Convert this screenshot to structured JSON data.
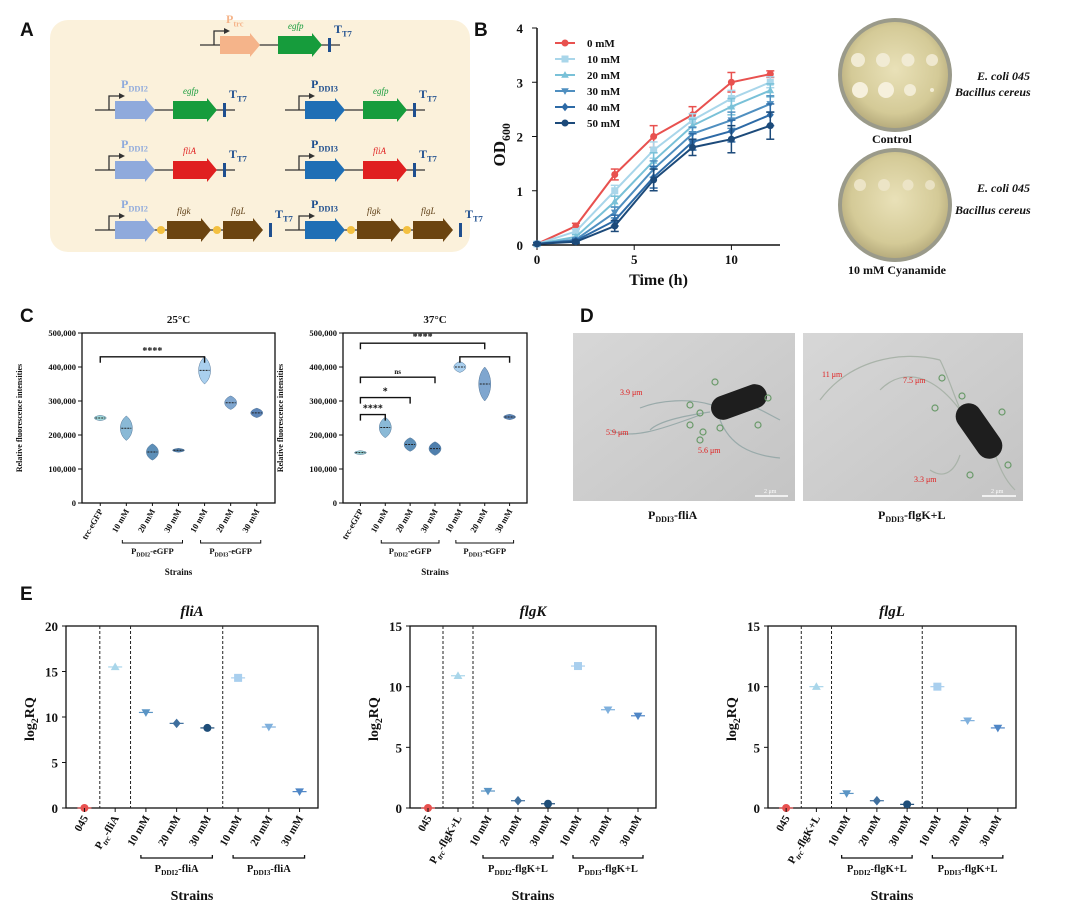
{
  "panels": {
    "A": {
      "label": "A",
      "constructs": [
        {
          "promoter": "P",
          "promoter_sub": "trc",
          "gene": "egfp",
          "terminator": "T",
          "terminator_sub": "T7"
        },
        {
          "promoter": "P",
          "promoter_sub": "DDI2",
          "gene": "egfp",
          "terminator": "T",
          "terminator_sub": "T7"
        },
        {
          "promoter": "P",
          "promoter_sub": "DDI3",
          "gene": "egfp",
          "terminator": "T",
          "terminator_sub": "T7"
        },
        {
          "promoter": "P",
          "promoter_sub": "DDI2",
          "gene": "fliA",
          "terminator": "T",
          "terminator_sub": "T7"
        },
        {
          "promoter": "P",
          "promoter_sub": "DDI3",
          "gene": "fliA",
          "terminator": "T",
          "terminator_sub": "T7"
        },
        {
          "promoter": "P",
          "promoter_sub": "DDI2",
          "gene": "flgk",
          "gene2": "flgL",
          "terminator": "T",
          "terminator_sub": "T7"
        },
        {
          "promoter": "P",
          "promoter_sub": "DDI3",
          "gene": "flgk",
          "gene2": "flgL",
          "terminator": "T",
          "terminator_sub": "T7"
        }
      ],
      "colors": {
        "trc": "#f5b48a",
        "ddi2": "#8faadc",
        "ddi3": "#1f6fb5",
        "egfp": "#169c3c",
        "flia": "#e02020",
        "flg": "#6b4410",
        "rbs": "#f3c040",
        "bg": "#fbf1db"
      }
    },
    "B": {
      "label": "B",
      "plate_labels": {
        "ecoli": "E. coli 045",
        "bacillus": "Bacillus cereus",
        "control": "Control",
        "cyanamide": "10 mM Cyanamide"
      }
    },
    "C": {
      "label": "C"
    },
    "D": {
      "label": "D",
      "image_left": {
        "caption_main": "P",
        "caption_sub": "DDI3",
        "caption_tail": "-fliA",
        "measures": [
          "3.9 μm",
          "5.9 μm",
          "5.6 μm"
        ],
        "scale": "2 μm"
      },
      "image_right": {
        "caption_main": "P",
        "caption_sub": "DDI3",
        "caption_tail": "-flgK+L",
        "measures": [
          "11 μm",
          "7.5 μm",
          "3.3 μm"
        ],
        "scale": "2 μm"
      }
    },
    "E": {
      "label": "E"
    }
  },
  "chart_data": [
    {
      "id": "B_growth",
      "type": "line",
      "xlabel": "Time (h)",
      "ylabel": "OD",
      "ylabel_sub": "600",
      "xlim": [
        0,
        12.5
      ],
      "ylim": [
        0,
        4
      ],
      "xticks": [
        0,
        5,
        10
      ],
      "yticks": [
        0,
        1,
        2,
        3,
        4
      ],
      "x": [
        0,
        2,
        4,
        6,
        8,
        10,
        12
      ],
      "series": [
        {
          "name": "0 mM",
          "color": "#e8514f",
          "marker": "circle",
          "values": [
            0.02,
            0.35,
            1.3,
            2.0,
            2.4,
            3.0,
            3.15
          ],
          "errors": [
            0.02,
            0.05,
            0.1,
            0.2,
            0.15,
            0.18,
            0.06
          ]
        },
        {
          "name": "10 mM",
          "color": "#a9d6ea",
          "marker": "square",
          "values": [
            0.02,
            0.25,
            1.0,
            1.75,
            2.3,
            2.7,
            3.0
          ],
          "errors": [
            0.02,
            0.04,
            0.1,
            0.15,
            0.12,
            0.15,
            0.1
          ]
        },
        {
          "name": "20 mM",
          "color": "#79c1d8",
          "marker": "triangle",
          "values": [
            0.02,
            0.15,
            0.8,
            1.55,
            2.2,
            2.55,
            2.85
          ],
          "errors": [
            0.02,
            0.04,
            0.1,
            0.15,
            0.12,
            0.15,
            0.12
          ]
        },
        {
          "name": "30 mM",
          "color": "#4f8fc0",
          "marker": "triangle-down",
          "values": [
            0.02,
            0.1,
            0.6,
            1.4,
            2.05,
            2.3,
            2.6
          ],
          "errors": [
            0.02,
            0.03,
            0.1,
            0.15,
            0.12,
            0.15,
            0.15
          ]
        },
        {
          "name": "40 mM",
          "color": "#2d6aa6",
          "marker": "diamond",
          "values": [
            0.02,
            0.08,
            0.45,
            1.25,
            1.9,
            2.1,
            2.4
          ],
          "errors": [
            0.02,
            0.03,
            0.1,
            0.2,
            0.15,
            0.2,
            0.2
          ]
        },
        {
          "name": "50 mM",
          "color": "#1c4a7a",
          "marker": "circle",
          "values": [
            0.02,
            0.06,
            0.35,
            1.2,
            1.8,
            1.95,
            2.2
          ],
          "errors": [
            0.02,
            0.03,
            0.1,
            0.2,
            0.15,
            0.25,
            0.25
          ]
        }
      ]
    },
    {
      "id": "C_25",
      "type": "violin",
      "title": "25°C",
      "ylabel": "Relative fluorescence intensities",
      "xlabel": "Strains",
      "ylim": [
        0,
        500000
      ],
      "yticks": [
        "0",
        "100,000",
        "200,000",
        "300,000",
        "400,000",
        "500,000"
      ],
      "categories": [
        "trc-eGFP",
        "10 mM",
        "20 mM",
        "30 mM",
        "10 mM",
        "20 mM",
        "30 mM"
      ],
      "groups": [
        {
          "label_main": "P",
          "label_sub": "DDI2",
          "label_tail": "-eGFP",
          "from": 1,
          "to": 3
        },
        {
          "label_main": "P",
          "label_sub": "DDI3",
          "label_tail": "-eGFP",
          "from": 4,
          "to": 6
        }
      ],
      "values": [
        250000,
        220000,
        150000,
        155000,
        390000,
        295000,
        265000
      ],
      "spreads": [
        4000,
        18000,
        12000,
        2000,
        20000,
        10000,
        7000
      ],
      "colors": [
        "#9fd8da",
        "#8ab9d6",
        "#5d8fb8",
        "#4f7fad",
        "#a9cfee",
        "#7fa6cf",
        "#5c84b7"
      ],
      "significance": [
        {
          "from": 0,
          "to": 4,
          "label": "****",
          "level": 430000
        }
      ]
    },
    {
      "id": "C_37",
      "type": "violin",
      "title": "37°C",
      "ylabel": "Relative fluorescence intensities",
      "xlabel": "Strains",
      "ylim": [
        0,
        500000
      ],
      "yticks": [
        "0",
        "100,000",
        "200,000",
        "300,000",
        "400,000",
        "500,000"
      ],
      "categories": [
        "trc-eGFP",
        "10 mM",
        "20 mM",
        "30 mM",
        "10 mM",
        "20 mM",
        "30 mM"
      ],
      "groups": [
        {
          "label_main": "P",
          "label_sub": "DDI2",
          "label_tail": "-eGFP",
          "from": 1,
          "to": 3
        },
        {
          "label_main": "P",
          "label_sub": "DDI3",
          "label_tail": "-eGFP",
          "from": 4,
          "to": 6
        }
      ],
      "values": [
        148000,
        222000,
        172000,
        160000,
        400000,
        350000,
        253000
      ],
      "spreads": [
        2000,
        15000,
        10000,
        10000,
        8000,
        25000,
        4000
      ],
      "colors": [
        "#9fd8da",
        "#8ab9d6",
        "#5d8fb8",
        "#4f7fad",
        "#a9cfee",
        "#7fa6cf",
        "#5c84b7"
      ],
      "significance": [
        {
          "from": 0,
          "to": 1,
          "label": "****",
          "level": 260000
        },
        {
          "from": 0,
          "to": 2,
          "label": "*",
          "level": 310000
        },
        {
          "from": 0,
          "to": 3,
          "label": "ns",
          "level": 370000
        },
        {
          "from": 0,
          "to": 5,
          "label": "****",
          "level": 470000
        },
        {
          "from": 4,
          "to": 6,
          "label": "",
          "level": 430000
        }
      ]
    },
    {
      "id": "E_fliA",
      "type": "scatter",
      "title": "fliA",
      "ylabel": "log",
      "ylabel_sub": "2",
      "ylabel_tail": "RQ",
      "xlabel": "Strains",
      "ylim": [
        0,
        20
      ],
      "yticks": [
        0,
        5,
        10,
        15,
        20
      ],
      "categories": [
        "045",
        "trc-fliA",
        "10 mM",
        "20 mM",
        "30 mM",
        "10 mM",
        "20 mM",
        "30 mM"
      ],
      "cat_prefix": [
        "",
        "P",
        "",
        "",
        "",
        "",
        "",
        ""
      ],
      "cat_sub": [
        "",
        "trc",
        "",
        "",
        "",
        "",
        "",
        ""
      ],
      "cat_tail": [
        "045",
        "-fliA",
        "10 mM",
        "20 mM",
        "30 mM",
        "10 mM",
        "20 mM",
        "30 mM"
      ],
      "values": [
        0,
        15.5,
        10.5,
        9.3,
        8.8,
        14.3,
        8.9,
        1.8
      ],
      "markers": [
        "circle",
        "triangle",
        "triangle-down",
        "diamond",
        "circle",
        "square",
        "triangle-down",
        "triangle-down"
      ],
      "colors": [
        "#e8514f",
        "#a9d6ea",
        "#5b95c5",
        "#3f6f9e",
        "#1f4e79",
        "#a9cfee",
        "#7fb0dd",
        "#4f86c6"
      ],
      "dividers": [
        0.5,
        1.5,
        4.5
      ],
      "groups": [
        {
          "label_main": "P",
          "label_sub": "DDI2",
          "label_tail": "-fliA",
          "from": 2,
          "to": 4
        },
        {
          "label_main": "P",
          "label_sub": "DDI3",
          "label_tail": "-fliA",
          "from": 5,
          "to": 7
        }
      ]
    },
    {
      "id": "E_flgK",
      "type": "scatter",
      "title": "flgK",
      "ylabel": "log",
      "ylabel_sub": "2",
      "ylabel_tail": "RQ",
      "xlabel": "Strains",
      "ylim": [
        0,
        15
      ],
      "yticks": [
        0,
        5,
        10,
        15
      ],
      "categories": [
        "045",
        "trc-flgK+L",
        "10 mM",
        "20 mM",
        "30 mM",
        "10 mM",
        "20 mM",
        "30 mM"
      ],
      "cat_prefix": [
        "",
        "P",
        "",
        "",
        "",
        "",
        "",
        ""
      ],
      "cat_sub": [
        "",
        "trc",
        "",
        "",
        "",
        "",
        "",
        ""
      ],
      "cat_tail": [
        "045",
        "-flgK+L",
        "10 mM",
        "20 mM",
        "30 mM",
        "10 mM",
        "20 mM",
        "30 mM"
      ],
      "values": [
        0,
        10.9,
        1.4,
        0.6,
        0.35,
        11.7,
        8.1,
        7.6
      ],
      "markers": [
        "circle",
        "triangle",
        "triangle-down",
        "diamond",
        "circle",
        "square",
        "triangle-down",
        "triangle-down"
      ],
      "colors": [
        "#e8514f",
        "#a9d6ea",
        "#5b95c5",
        "#3f6f9e",
        "#1f4e79",
        "#a9cfee",
        "#7fb0dd",
        "#4f86c6"
      ],
      "dividers": [
        0.5,
        1.5
      ],
      "groups": [
        {
          "label_main": "P",
          "label_sub": "DDI2",
          "label_tail": "-flgK+L",
          "from": 2,
          "to": 4
        },
        {
          "label_main": "P",
          "label_sub": "DDI3",
          "label_tail": "-flgK+L",
          "from": 5,
          "to": 7
        }
      ]
    },
    {
      "id": "E_flgL",
      "type": "scatter",
      "title": "flgL",
      "ylabel": "log",
      "ylabel_sub": "2",
      "ylabel_tail": "RQ",
      "xlabel": "Strains",
      "ylim": [
        0,
        15
      ],
      "yticks": [
        0,
        5,
        10,
        15
      ],
      "categories": [
        "045",
        "trc-flgK+L",
        "10 mM",
        "20 mM",
        "30 mM",
        "10 mM",
        "20 mM",
        "30 mM"
      ],
      "cat_prefix": [
        "",
        "P",
        "",
        "",
        "",
        "",
        "",
        ""
      ],
      "cat_sub": [
        "",
        "trc",
        "",
        "",
        "",
        "",
        "",
        ""
      ],
      "cat_tail": [
        "045",
        "-flgK+L",
        "10 mM",
        "20 mM",
        "30 mM",
        "10 mM",
        "20 mM",
        "30 mM"
      ],
      "values": [
        0,
        10.0,
        1.2,
        0.6,
        0.3,
        10.0,
        7.2,
        6.6
      ],
      "markers": [
        "circle",
        "triangle",
        "triangle-down",
        "diamond",
        "circle",
        "square",
        "triangle-down",
        "triangle-down"
      ],
      "colors": [
        "#e8514f",
        "#a9d6ea",
        "#5b95c5",
        "#3f6f9e",
        "#1f4e79",
        "#a9cfee",
        "#7fb0dd",
        "#4f86c6"
      ],
      "dividers": [
        0.5,
        1.5,
        4.5
      ],
      "groups": [
        {
          "label_main": "P",
          "label_sub": "DDI2",
          "label_tail": "-flgK+L",
          "from": 2,
          "to": 4
        },
        {
          "label_main": "P",
          "label_sub": "DDI3",
          "label_tail": "-flgK+L",
          "from": 5,
          "to": 7
        }
      ]
    }
  ]
}
